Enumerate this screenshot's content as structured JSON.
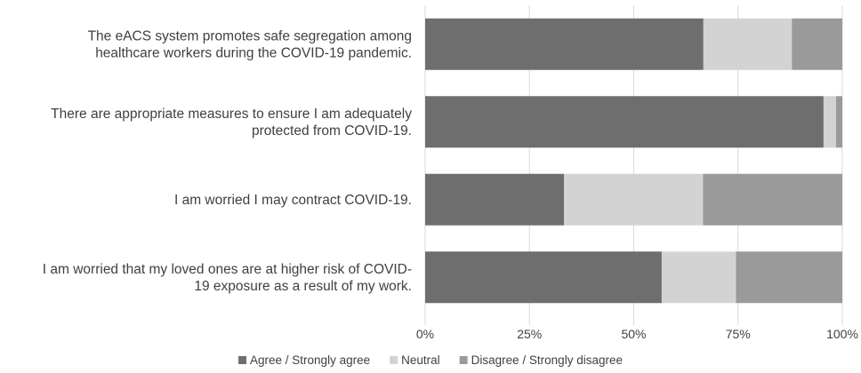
{
  "chart_data": {
    "type": "bar",
    "orientation": "horizontal",
    "stacked": "100%",
    "categories": [
      [
        "The eACS system promotes safe segregation among",
        "healthcare workers during the COVID-19 pandemic."
      ],
      [
        "There are appropriate measures to ensure I am adequately",
        "protected from COVID-19."
      ],
      [
        "I am worried I may contract COVID-19."
      ],
      [
        "I am worried that my loved ones are at higher risk of COVID-",
        "19 exposure as a result of my work."
      ]
    ],
    "series": [
      {
        "name": "Agree / Strongly agree",
        "color": "#6e6e6e",
        "values": [
          66.7,
          95.5,
          33.3,
          56.7
        ]
      },
      {
        "name": "Neutral",
        "color": "#d3d3d3",
        "values": [
          21.2,
          3.0,
          33.3,
          17.8
        ]
      },
      {
        "name": "Disagree / Strongly disagree",
        "color": "#9a9a9a",
        "values": [
          12.1,
          1.5,
          33.4,
          25.5
        ]
      }
    ],
    "xlim": [
      0,
      100
    ],
    "x_ticks": [
      "0%",
      "25%",
      "50%",
      "75%",
      "100%"
    ],
    "x_tick_values": [
      0,
      25,
      50,
      75,
      100
    ],
    "grid": true,
    "legend_position": "bottom"
  }
}
